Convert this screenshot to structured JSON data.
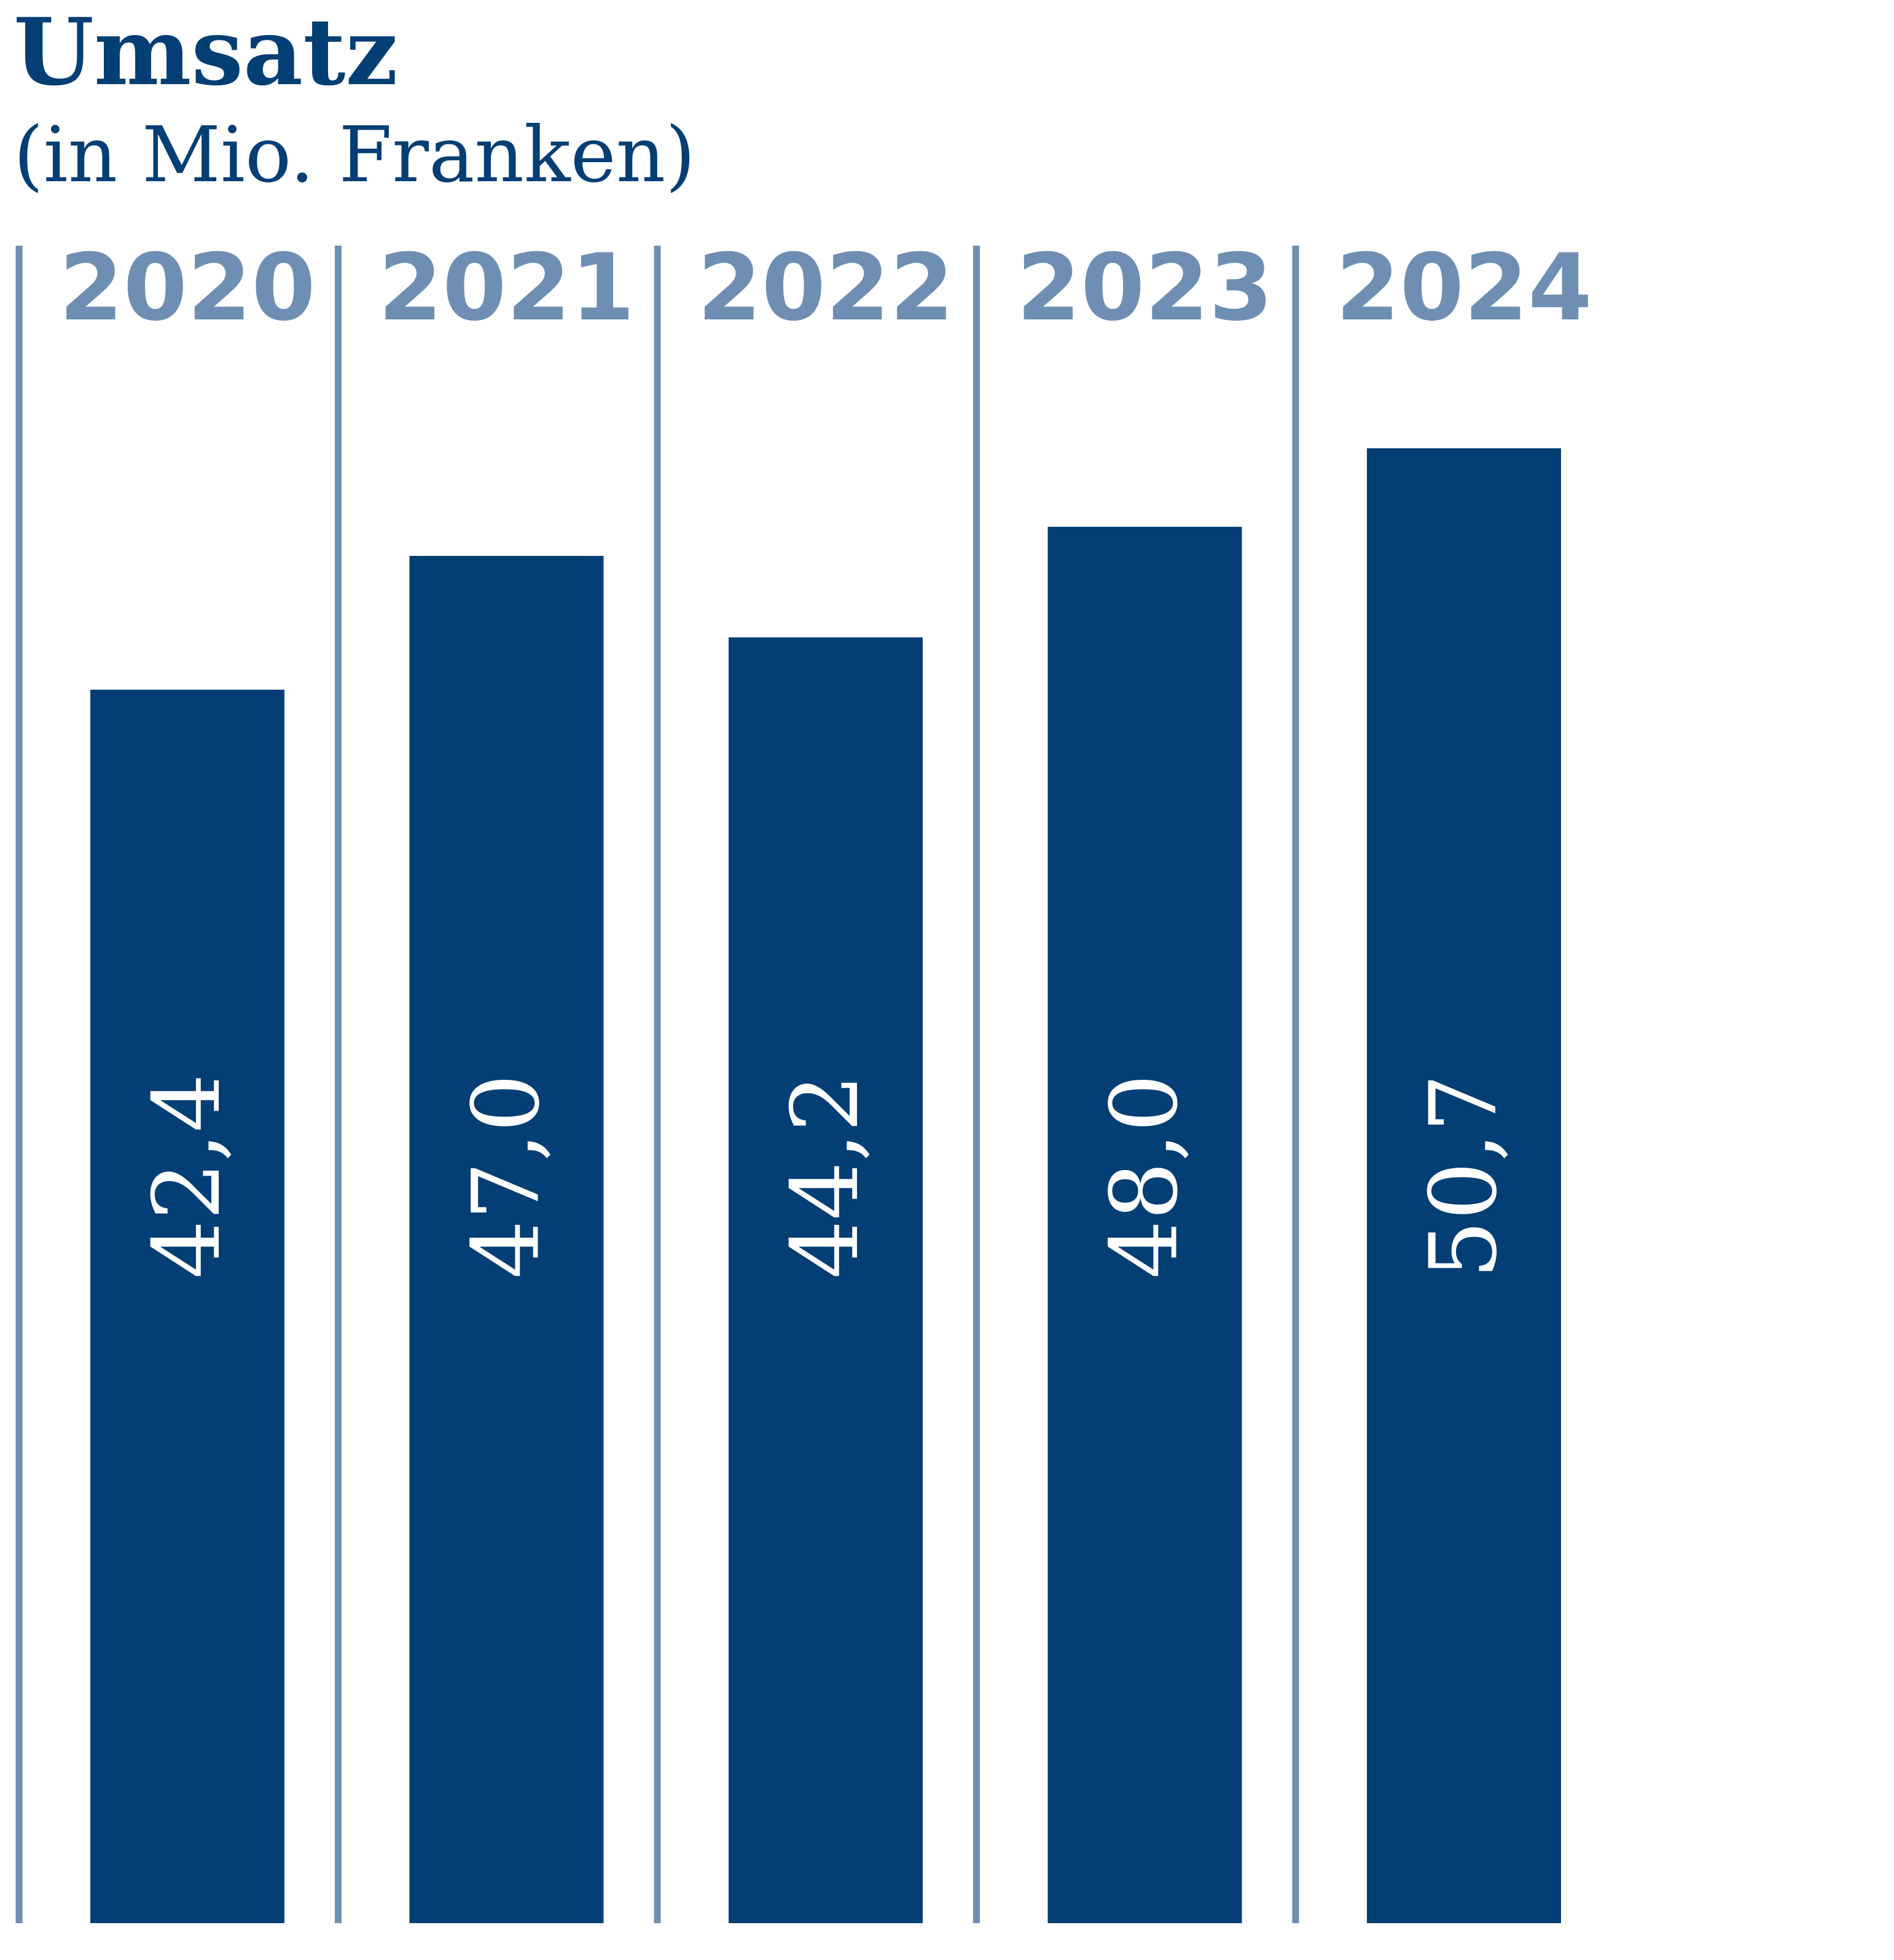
{
  "chart_data": {
    "type": "bar",
    "title": "Umsatz",
    "subtitle": "(in Mio. Franken)",
    "categories": [
      "2020",
      "2021",
      "2022",
      "2023",
      "2024"
    ],
    "values": [
      42.4,
      47.0,
      44.2,
      48.0,
      50.7
    ],
    "value_labels": [
      "42,4",
      "47,0",
      "44,2",
      "48,0",
      "50,7"
    ],
    "value_label_orientation": "rotated-vertical",
    "category_position": "top",
    "value_axis_visible": false,
    "grid": false,
    "legend": "none",
    "ylim": [
      0,
      54.2
    ]
  },
  "colors": {
    "bar": "#033e75",
    "title": "#033e75",
    "category_label": "#6e8fb3",
    "separator": "#6e8fb3",
    "value_label": "#ffffff"
  }
}
